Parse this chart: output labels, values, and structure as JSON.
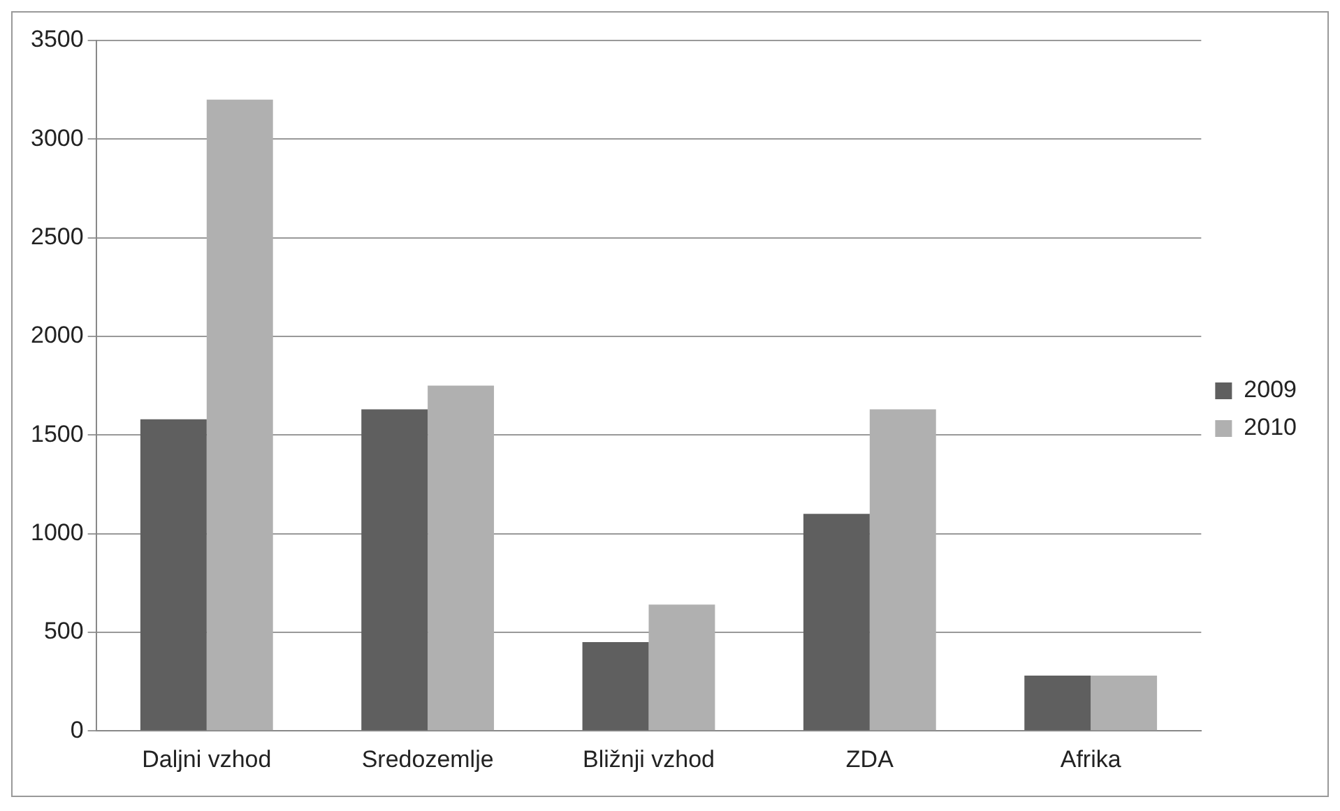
{
  "chart_data": {
    "type": "bar",
    "categories": [
      "Daljni vzhod",
      "Sredozemlje",
      "Bližnji vzhod",
      "ZDA",
      "Afrika"
    ],
    "series": [
      {
        "name": "2009",
        "color": "#5f5f5f",
        "values": [
          1580,
          1630,
          450,
          1100,
          280
        ]
      },
      {
        "name": "2010",
        "color": "#b0b0b0",
        "values": [
          3200,
          1750,
          640,
          1630,
          280
        ]
      }
    ],
    "ylim": [
      0,
      3500
    ],
    "yticks": [
      0,
      500,
      1000,
      1500,
      2000,
      2500,
      3000,
      3500
    ],
    "grid": "y",
    "legend": "right"
  }
}
